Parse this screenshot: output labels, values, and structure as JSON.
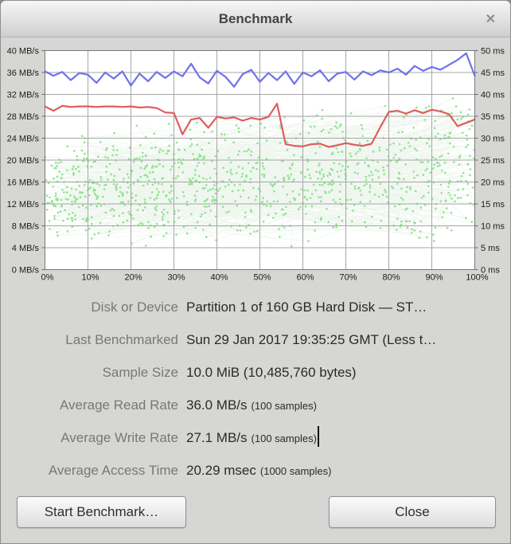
{
  "window": {
    "title": "Benchmark",
    "close_glyph": "✕"
  },
  "chart_data": {
    "type": "line",
    "title": "",
    "grid": true,
    "x_axis": {
      "unit": "%",
      "range": [
        0,
        100
      ],
      "ticks": [
        "0%",
        "10%",
        "20%",
        "30%",
        "40%",
        "50%",
        "60%",
        "70%",
        "80%",
        "90%",
        "100%"
      ]
    },
    "y_axis_left": {
      "unit": "MB/s",
      "range": [
        0,
        40
      ],
      "tick_step": 4,
      "ticks": [
        "40 MB/s",
        "36 MB/s",
        "32 MB/s",
        "28 MB/s",
        "24 MB/s",
        "20 MB/s",
        "16 MB/s",
        "12 MB/s",
        "8 MB/s",
        "4 MB/s",
        "0 MB/s"
      ]
    },
    "y_axis_right": {
      "unit": "ms",
      "range": [
        0,
        50
      ],
      "tick_step": 5,
      "ticks": [
        "50 ms",
        "45 ms",
        "40 ms",
        "35 ms",
        "30 ms",
        "25 ms",
        "20 ms",
        "15 ms",
        "10 ms",
        "5 ms",
        "0 ms"
      ]
    },
    "series": [
      {
        "name": "read-rate",
        "type": "line",
        "axis": "left",
        "unit": "MB/s",
        "color": "#7171e8",
        "average": 36.0,
        "sample_count": 100,
        "x_start": 0,
        "x_step": 2,
        "values": [
          36.2,
          35.4,
          36.1,
          34.6,
          35.9,
          35.6,
          34.1,
          36.0,
          34.9,
          36.2,
          33.6,
          35.8,
          34.4,
          36.1,
          35.0,
          36.2,
          35.3,
          37.6,
          35.1,
          34.0,
          36.3,
          35.2,
          33.4,
          35.7,
          36.5,
          34.3,
          35.9,
          34.6,
          36.2,
          33.9,
          36.0,
          35.3,
          36.4,
          34.4,
          35.8,
          36.1,
          34.7,
          36.2,
          35.5,
          36.4,
          36.0,
          36.7,
          35.6,
          37.2,
          36.3,
          37.0,
          36.5,
          37.4,
          38.3,
          39.5,
          35.4
        ]
      },
      {
        "name": "write-rate",
        "type": "line",
        "axis": "left",
        "unit": "MB/s",
        "color": "#e05c5c",
        "average": 27.1,
        "sample_count": 100,
        "x_start": 0,
        "x_step": 2,
        "values": [
          29.8,
          29.0,
          29.9,
          29.7,
          29.8,
          29.8,
          29.7,
          29.8,
          29.8,
          29.7,
          29.8,
          29.6,
          29.7,
          29.5,
          28.7,
          28.6,
          24.7,
          27.4,
          27.7,
          25.9,
          27.9,
          27.6,
          27.8,
          27.2,
          27.7,
          27.4,
          27.9,
          30.3,
          22.9,
          22.6,
          22.5,
          22.9,
          23.0,
          22.4,
          22.7,
          23.1,
          22.8,
          22.6,
          23.0,
          26.0,
          28.8,
          29.0,
          28.5,
          29.1,
          28.6,
          29.2,
          28.9,
          28.4,
          26.2,
          26.8,
          27.4
        ]
      },
      {
        "name": "access-time",
        "type": "scatter-web",
        "axis": "right",
        "unit": "ms",
        "dot_color": "#8ce48c",
        "web_color": "#9fc89f",
        "web_opacity": 0.17,
        "average": 20.29,
        "sample_count": 1000,
        "y_min": 5,
        "y_spread_base": 26,
        "y_spread_slope": 10,
        "seed": 123456789
      }
    ]
  },
  "info": {
    "rows": [
      {
        "label": "Disk or Device",
        "value": "Partition 1 of 160 GB Hard Disk — ST…",
        "note": ""
      },
      {
        "label": "Last Benchmarked",
        "value": "Sun 29 Jan 2017 19:35:25 GMT (Less t…",
        "note": ""
      },
      {
        "label": "Sample Size",
        "value": "10.0 MiB (10,485,760 bytes)",
        "note": ""
      },
      {
        "label": "Average Read Rate",
        "value": "36.0 MB/s",
        "note": "(100 samples)"
      },
      {
        "label": "Average Write Rate",
        "value": "27.1 MB/s",
        "note": "(100 samples)"
      },
      {
        "label": "Average Access Time",
        "value": "20.29 msec",
        "note": "(1000 samples)"
      }
    ]
  },
  "buttons": {
    "start": "Start Benchmark…",
    "close": "Close"
  }
}
